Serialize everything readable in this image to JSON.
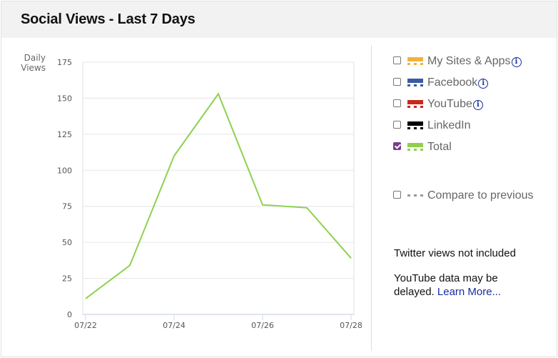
{
  "header": {
    "title": "Social Views - Last 7 Days"
  },
  "chart_data": {
    "type": "line",
    "title": "Social Views - Last 7 Days",
    "ylabel": "Daily Views",
    "xlabel": "",
    "categories": [
      "07/22",
      "07/23",
      "07/24",
      "07/25",
      "07/26",
      "07/27",
      "07/28"
    ],
    "x_tick_labels": [
      "07/22",
      "07/24",
      "07/26",
      "07/28"
    ],
    "y_ticks": [
      0,
      25,
      50,
      75,
      100,
      125,
      150,
      175
    ],
    "ylim": [
      0,
      175
    ],
    "grid": true,
    "legend_position": "right",
    "series": [
      {
        "name": "Total",
        "color": "#8fd14f",
        "values": [
          11,
          34,
          110,
          153,
          76,
          74,
          39
        ]
      }
    ]
  },
  "axis": {
    "ylabel_line1": "Daily",
    "ylabel_line2": "Views"
  },
  "legend": {
    "items": [
      {
        "label": "My Sites & Apps",
        "color": "#f0b43c",
        "checked": false,
        "info": true
      },
      {
        "label": "Facebook",
        "color": "#3c5a9f",
        "checked": false,
        "info": true
      },
      {
        "label": "YouTube",
        "color": "#c8281e",
        "checked": false,
        "info": true
      },
      {
        "label": "LinkedIn",
        "color": "#000000",
        "checked": false,
        "info": false
      },
      {
        "label": "Total",
        "color": "#8fd14f",
        "checked": true,
        "info": false
      }
    ],
    "compare_label": "Compare to previous",
    "info_glyph": "i"
  },
  "notes": {
    "twitter": "Twitter views not included",
    "youtube": "YouTube data may be delayed.",
    "learn_more": "Learn More..."
  }
}
